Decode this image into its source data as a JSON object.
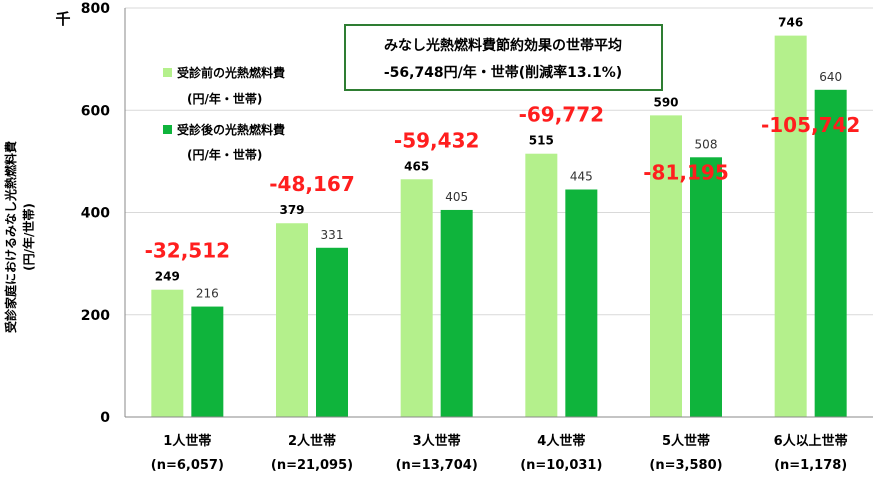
{
  "chart_data": {
    "type": "bar",
    "unit_label": "千",
    "ylabel_main": "受診家庭におけるみなし光熱燃料費",
    "ylabel_unit": "(円/年/世帯)",
    "ylim": [
      0,
      800
    ],
    "yticks": [
      0,
      200,
      400,
      600,
      800
    ],
    "grid": true,
    "legend_position": "top-left",
    "categories": [
      "1人世帯",
      "2人世帯",
      "3人世帯",
      "4人世帯",
      "5人世帯",
      "6人以上世帯"
    ],
    "category_counts": [
      "(n=6,057)",
      "(n=21,095)",
      "(n=13,704)",
      "(n=10,031)",
      "(n=3,580)",
      "(n=1,178)"
    ],
    "series": [
      {
        "name": "受診前の光熱燃料費",
        "name_unit": "(円/年・世帯)",
        "color": "#B4F08C",
        "values": [
          249,
          379,
          465,
          515,
          590,
          746
        ],
        "labels": [
          "249",
          "379",
          "465",
          "515",
          "590",
          "746"
        ]
      },
      {
        "name": "受診後の光熱燃料費",
        "name_unit": "(円/年・世帯)",
        "color": "#0FB43C",
        "values": [
          216,
          331,
          405,
          445,
          508,
          640
        ],
        "labels": [
          "216",
          "331",
          "405",
          "445",
          "508",
          "640"
        ]
      }
    ],
    "savings": [
      "-32,512",
      "-48,167",
      "-59,432",
      "-69,772",
      "-81,195",
      "-105,742"
    ],
    "annotation": {
      "line1": "みなし光熱燃料費節約効果の世帯平均",
      "line2": "-56,748円/年・世帯(削減率13.1%)"
    }
  },
  "colors": {
    "before": "#B4F08C",
    "after": "#0FB43C",
    "savings": "#FF1E1E",
    "box_border": "#2E7D32",
    "axis": "#888888",
    "grid": "#D9D9D9"
  }
}
